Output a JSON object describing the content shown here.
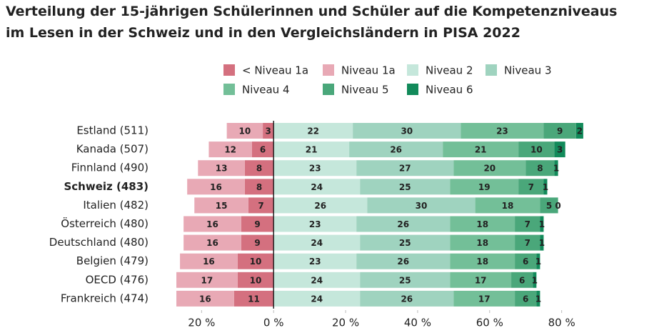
{
  "chart_data": {
    "type": "diverging-stacked-bar",
    "title": [
      "Verteilung der 15-jährigen Schülerinnen und Schüler auf die Kompetenzniveaus",
      "im Lesen in der Schweiz und in den Vergleichsländern in PISA 2022"
    ],
    "categories": [
      "Estland (511)",
      "Kanada (507)",
      "Finnland (490)",
      "Schweiz (483)",
      "Italien (482)",
      "Österreich (480)",
      "Deutschland (480)",
      "Belgien (479)",
      "OECD (476)",
      "Frankreich (474)"
    ],
    "highlight": 3,
    "series": [
      {
        "name": "< Niveau 1a",
        "color": "#d4707f",
        "values": [
          -3,
          -6,
          -8,
          -8,
          -7,
          -9,
          -9,
          -10,
          -10,
          -11
        ],
        "value_labels": [
          "3",
          "6",
          "8",
          "8",
          "7",
          "9",
          "9",
          "10",
          "10",
          "11"
        ]
      },
      {
        "name": "Niveau 1a",
        "color": "#e8a9b5",
        "values": [
          -10,
          -12,
          -13,
          -16,
          -15,
          -16,
          -16,
          -16,
          -17,
          -16
        ],
        "value_labels": [
          "10",
          "12",
          "13",
          "16",
          "15",
          "16",
          "16",
          "16",
          "17",
          "16"
        ]
      },
      {
        "name": "Niveau 2",
        "color": "#c5e7db",
        "values": [
          22,
          21,
          23,
          24,
          26,
          23,
          24,
          23,
          24,
          24
        ]
      },
      {
        "name": "Niveau 3",
        "color": "#9fd3bf",
        "values": [
          30,
          26,
          27,
          25,
          30,
          26,
          25,
          26,
          25,
          26
        ]
      },
      {
        "name": "Niveau 4",
        "color": "#73bf98",
        "values": [
          23,
          21,
          20,
          19,
          18,
          18,
          18,
          18,
          17,
          17
        ]
      },
      {
        "name": "Niveau 5",
        "color": "#4aa77a",
        "values": [
          9,
          10,
          8,
          7,
          5,
          7,
          7,
          6,
          6,
          6
        ]
      },
      {
        "name": "Niveau 6",
        "color": "#128a5a",
        "values": [
          2,
          3,
          1,
          1,
          0,
          1,
          1,
          1,
          1,
          1
        ]
      }
    ],
    "xlim": [
      -28,
      88
    ],
    "xticks": [
      {
        "value": -20,
        "label": "20 %"
      },
      {
        "value": 0,
        "label": "0 %"
      },
      {
        "value": 20,
        "label": "20 %"
      },
      {
        "value": 40,
        "label": "40 %"
      },
      {
        "value": 60,
        "label": "60 %"
      },
      {
        "value": 80,
        "label": "80 %"
      }
    ]
  }
}
